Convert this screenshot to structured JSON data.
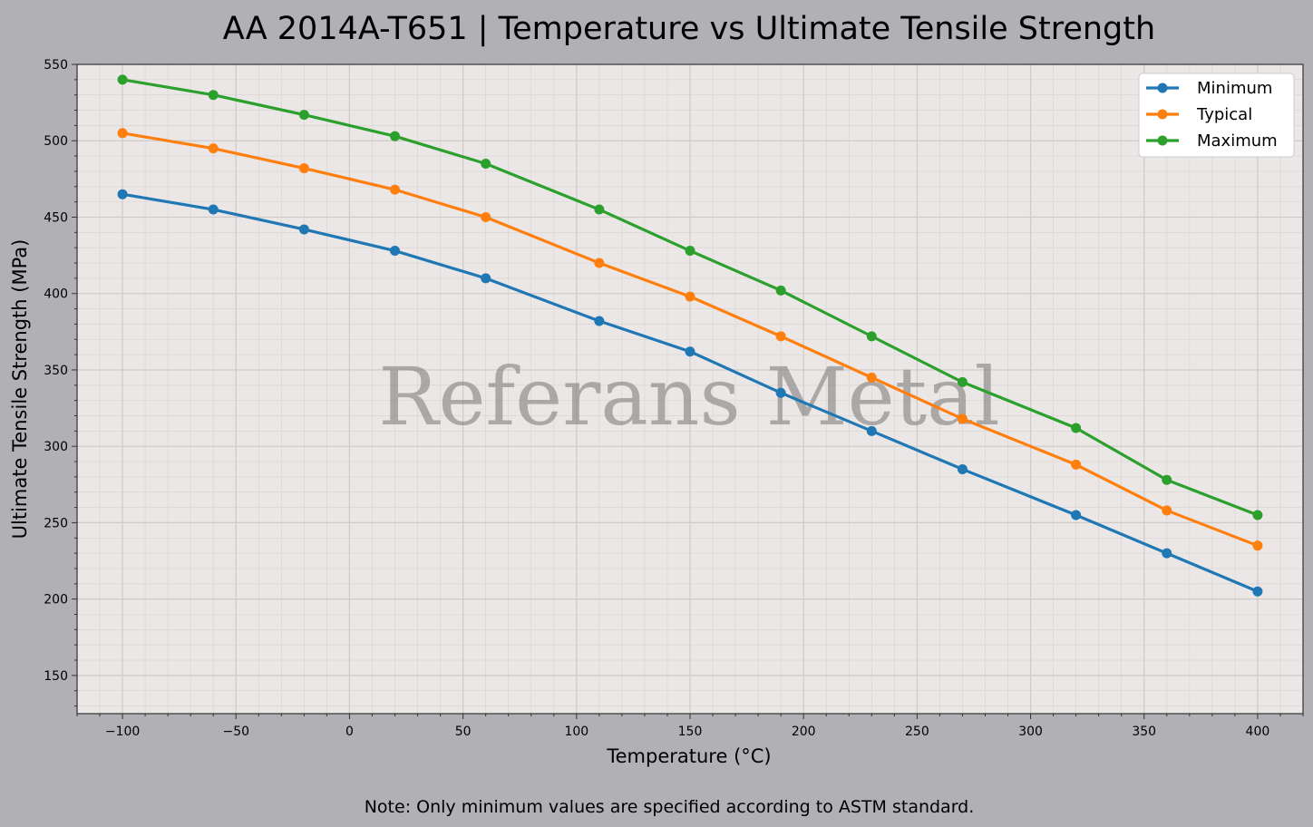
{
  "chart_data": {
    "type": "line",
    "title": "AA 2014A-T651 | Temperature vs Ultimate Tensile Strength",
    "xlabel": "Temperature (°C)",
    "ylabel": "Ultimate Tensile Strength (MPa)",
    "xlim": [
      -120,
      420
    ],
    "ylim": [
      125,
      550
    ],
    "xticks": [
      -100,
      -50,
      0,
      50,
      100,
      150,
      200,
      250,
      300,
      350,
      400
    ],
    "xtick_labels": [
      "−100",
      "−50",
      "0",
      "50",
      "100",
      "150",
      "200",
      "250",
      "300",
      "350",
      "400"
    ],
    "yticks": [
      150,
      200,
      250,
      300,
      350,
      400,
      450,
      500,
      550
    ],
    "grid": true,
    "minor_grid": true,
    "legend_position": "top-right",
    "x": [
      -100,
      -60,
      -20,
      20,
      60,
      110,
      150,
      190,
      230,
      270,
      320,
      360,
      400
    ],
    "series": [
      {
        "name": "Minimum",
        "color": "#1f77b4",
        "values": [
          465,
          455,
          442,
          428,
          410,
          382,
          362,
          335,
          310,
          285,
          255,
          230,
          205
        ]
      },
      {
        "name": "Typical",
        "color": "#ff7f0e",
        "values": [
          505,
          495,
          482,
          468,
          450,
          420,
          398,
          372,
          345,
          318,
          288,
          258,
          235
        ]
      },
      {
        "name": "Maximum",
        "color": "#2ca02c",
        "values": [
          540,
          530,
          517,
          503,
          485,
          455,
          428,
          402,
          372,
          342,
          312,
          278,
          255
        ]
      }
    ],
    "watermark": "Referans Metal",
    "note": "Note: Only minimum values are specified according to ASTM standard."
  }
}
